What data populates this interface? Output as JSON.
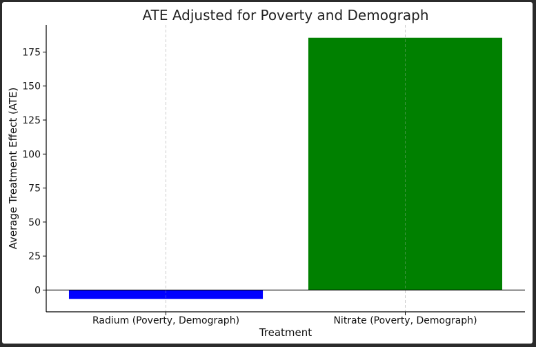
{
  "chart_data": {
    "type": "bar",
    "title": "ATE Adjusted for Poverty and Demograph",
    "xlabel": "Treatment",
    "ylabel": "Average Treatment Effect (ATE)",
    "categories": [
      "Radium (Poverty, Demograph)",
      "Nitrate (Poverty, Demograph)"
    ],
    "values": [
      -6.5,
      185.5
    ],
    "colors": [
      "#0000ff",
      "#008000"
    ],
    "ylim": [
      -16,
      195
    ],
    "yticks": [
      0,
      25,
      50,
      75,
      100,
      125,
      150,
      175
    ],
    "grid": "x-only dashed",
    "zero_line": true
  }
}
